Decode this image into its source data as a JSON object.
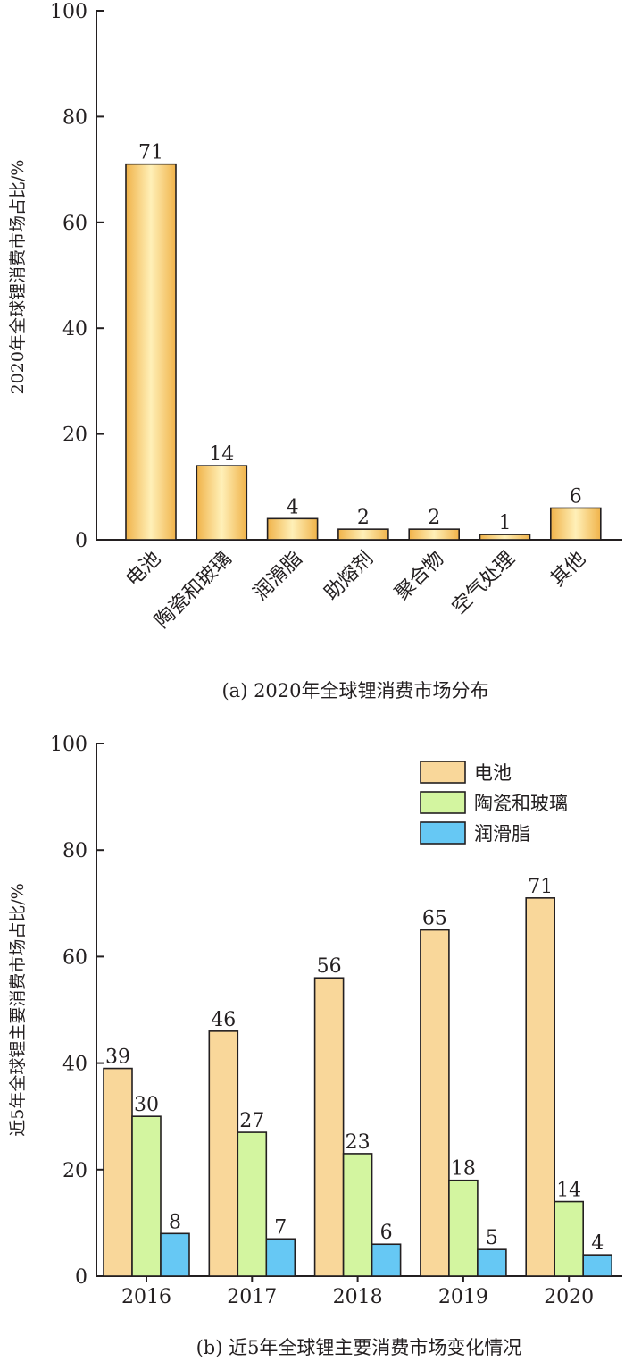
{
  "chart_data": [
    {
      "type": "bar",
      "ylabel": "2020年全球锂消费市场占比/%",
      "caption": "(a) 2020年全球锂消费市场分布",
      "ylim": [
        0,
        100
      ],
      "yticks": [
        0,
        20,
        40,
        60,
        80,
        100
      ],
      "categories": [
        "电池",
        "陶瓷和玻璃",
        "润滑脂",
        "助熔剂",
        "聚合物",
        "空气处理",
        "其他"
      ],
      "values": [
        71,
        14,
        4,
        2,
        2,
        1,
        6
      ],
      "data_labels": [
        "71",
        "14",
        "4",
        "2",
        "2",
        "1",
        "6"
      ],
      "bar_color": "#f5c468",
      "legend": "none"
    },
    {
      "type": "bar",
      "ylabel": "近5年全球锂主要消费市场占比/%",
      "caption": "(b) 近5年全球锂主要消费市场变化情况",
      "ylim": [
        0,
        100
      ],
      "yticks": [
        0,
        20,
        40,
        60,
        80,
        100
      ],
      "categories": [
        "2016",
        "2017",
        "2018",
        "2019",
        "2020"
      ],
      "series": [
        {
          "name": "电池",
          "color": "#f9d79a",
          "values": [
            39,
            46,
            56,
            65,
            71
          ]
        },
        {
          "name": "陶瓷和玻璃",
          "color": "#d3f5a0",
          "values": [
            30,
            27,
            23,
            18,
            14
          ]
        },
        {
          "name": "润滑脂",
          "color": "#66c8f4",
          "values": [
            8,
            7,
            6,
            5,
            4
          ]
        }
      ],
      "legend": "top-right"
    }
  ]
}
